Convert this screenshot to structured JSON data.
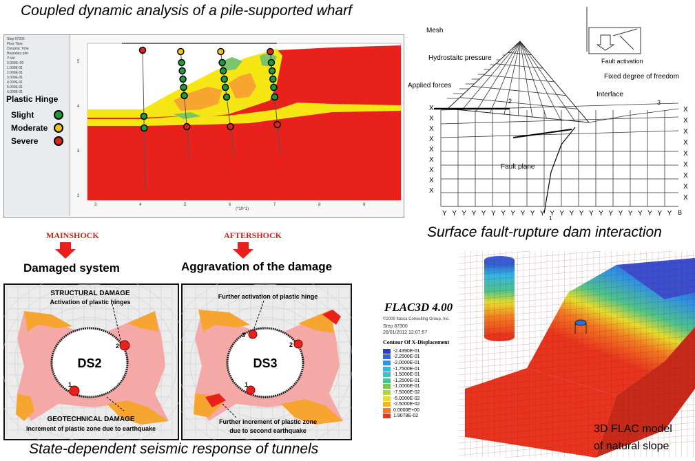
{
  "colors": {
    "accent_red": "#e8211c",
    "pink_zone": "#f4a9a7",
    "orange_zone": "#f7a531",
    "yellow_zone": "#f6e614",
    "green_zone": "#7cc46a",
    "hinge_slight": "#1f9a3a",
    "hinge_moderate": "#f3c418",
    "hinge_severe": "#d9251c",
    "mainshock_text": "#c8251c"
  },
  "wharf": {
    "title": "Coupled dynamic analysis of a pile-supported wharf",
    "legend_title": "Plastic Hinge",
    "legend_items": [
      {
        "label": "Slight",
        "color": "#1f9a3a"
      },
      {
        "label": "Moderate",
        "color": "#f3c418"
      },
      {
        "label": "Severe",
        "color": "#d9251c"
      }
    ],
    "sidebar_lines": [
      "Step 67200",
      "Flow Time",
      "Dynamic Time",
      "Boundary plot",
      "Y-Vel",
      "0.000E+00",
      "1.000E-01",
      "2.000E-01",
      "3.000E-01",
      "4.000E-01",
      "5.000E-01",
      "6.000E-01"
    ],
    "x_ticks": [
      "3",
      "4",
      "5",
      "6",
      "7",
      "8",
      "9"
    ],
    "y_ticks": [
      "5",
      "4",
      "3",
      "2"
    ],
    "x_axis_label": "(*10^1)"
  },
  "dam": {
    "title": "Surface fault-rupture dam interaction",
    "labels": {
      "mesh": "Mesh",
      "hydrostatic": "Hydrostaitc pressure",
      "applied_forces": "Applied forces",
      "fault_activation": "Fault activation",
      "fixed_dof": "Fixed degree of freedom",
      "interface": "Interface",
      "fault_plane": "Fault plane",
      "node_2": "2",
      "node_3": "3",
      "node_1": "1",
      "node_b": "B"
    },
    "x_marks": [
      "X",
      "X",
      "X",
      "X",
      "X",
      "X",
      "X",
      "X",
      "X"
    ],
    "y_marks": [
      "Y",
      "Y",
      "Y",
      "Y",
      "Y",
      "Y",
      "Y",
      "Y",
      "Y",
      "Y",
      "Y",
      "Y",
      "Y",
      "Y",
      "Y",
      "Y",
      "Y",
      "Y",
      "Y",
      "Y",
      "Y",
      "Y",
      "Y",
      "Y"
    ]
  },
  "tunnels": {
    "mainshock_label": "MAINSHOCK",
    "aftershock_label": "AFTERSHOCK",
    "damaged_system": "Damaged system",
    "aggravation": "Aggravation of the damage",
    "left_panel": {
      "structural_damage": "STRUCTURAL DAMAGE",
      "activation": "Activation of plastic hinges",
      "ds": "DS2",
      "hinge_1": "1",
      "hinge_2": "2",
      "geotechnical_damage": "GEOTECHNICAL DAMAGE",
      "increment": "Increment of plastic zone due to earthquake"
    },
    "right_panel": {
      "further_activation": "Further activation of plastic hinge",
      "ds": "DS3",
      "hinge_1": "1",
      "hinge_2": "2",
      "hinge_3": "3",
      "further_increment_1": "Further increment of plastic zone",
      "further_increment_2": "due to second earthquake"
    },
    "title": "State-dependent seismic response of tunnels"
  },
  "flac": {
    "product": "FLAC3D 4.00",
    "copyright": "©2009 Itasca Consulting Group, Inc.",
    "step": "Step 87300",
    "date": "26/01/2012 12:07:57",
    "contour_title": "Contour Of X-Displacement",
    "contour_items": [
      {
        "value": "-2.4390E-01",
        "color": "#2b3fc6"
      },
      {
        "value": "-2.2500E-01",
        "color": "#2f6ad8"
      },
      {
        "value": "-2.0000E-01",
        "color": "#2f94e3"
      },
      {
        "value": "-1.7500E-01",
        "color": "#33b7e6"
      },
      {
        "value": "-1.5000E-01",
        "color": "#3cc6c3"
      },
      {
        "value": "-1.2500E-01",
        "color": "#4cc48b"
      },
      {
        "value": "-1.0000E-01",
        "color": "#79c84e"
      },
      {
        "value": "-7.5000E-02",
        "color": "#b5d43a"
      },
      {
        "value": "-5.0000E-02",
        "color": "#e6dc2c"
      },
      {
        "value": "-2.5000E-02",
        "color": "#f4b226"
      },
      {
        "value": "0.0000E+00",
        "color": "#f27a22"
      },
      {
        "value": "1.9078E-02",
        "color": "#e8341e"
      }
    ],
    "caption_line1": "3D FLAC model",
    "caption_line2": "of natural slope"
  }
}
